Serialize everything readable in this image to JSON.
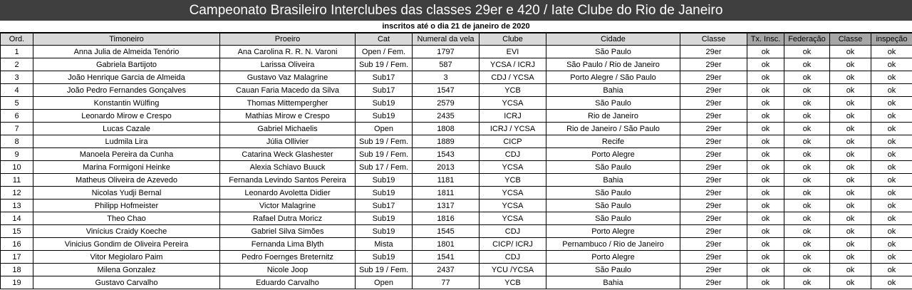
{
  "title": "Campeonato Brasileiro Interclubes das classes 29er e 420 / Iate Clube do Rio de Janeiro",
  "subtitle": "inscritos até o dia 21 de janeiro de 2020",
  "colors": {
    "title_bg": "#3f3f3f",
    "header_bg": "#d9d9d9",
    "header_dark_bg": "#a6a6a6"
  },
  "headers": [
    "Ord.",
    "Timoneiro",
    "Proeiro",
    "Cat",
    "Numeral da vela",
    "Clube",
    "Cidade",
    "Classe",
    "Tx. Insc.",
    "Federação",
    "Classe",
    "inspeção"
  ],
  "rows": [
    [
      "1",
      "Anna Julia de Almeida Tenório",
      "Ana Carolina R. R. N. Varoni",
      "Open / Fem.",
      "1797",
      "EVI",
      "São Paulo",
      "29er",
      "ok",
      "ok",
      "ok",
      "ok"
    ],
    [
      "2",
      "Gabriela Bartijoto",
      "Larissa Oliveira",
      "Sub 19 / Fem.",
      "587",
      "YCSA / ICRJ",
      "São Paulo / Rio de Janeiro",
      "29er",
      "ok",
      "ok",
      "ok",
      "ok"
    ],
    [
      "3",
      "João Henrique Garcia de Almeida",
      "Gustavo Vaz Malagrine",
      "Sub17",
      "3",
      "CDJ / YCSA",
      "Porto Alegre / São Paulo",
      "29er",
      "ok",
      "ok",
      "ok",
      "ok"
    ],
    [
      "4",
      "João Pedro Fernandes Gonçalves",
      "Cauan Faria Macedo da Silva",
      "Sub17",
      "1547",
      "YCB",
      "Bahia",
      "29er",
      "ok",
      "ok",
      "ok",
      "ok"
    ],
    [
      "5",
      "Konstantin Wülfing",
      "Thomas Mittempergher",
      "Sub19",
      "2579",
      "YCSA",
      "São Paulo",
      "29er",
      "ok",
      "ok",
      "ok",
      "ok"
    ],
    [
      "6",
      "Leonardo Mirow e Crespo",
      "Mathias Mirow e Crespo",
      "Sub19",
      "2435",
      "ICRJ",
      "Rio de Janeiro",
      "29er",
      "ok",
      "ok",
      "ok",
      "ok"
    ],
    [
      "7",
      "Lucas Cazale",
      "Gabriel Michaelis",
      "Open",
      "1808",
      "ICRJ / YCSA",
      "Rio de Janeiro / São Paulo",
      "29er",
      "ok",
      "ok",
      "ok",
      "ok"
    ],
    [
      "8",
      "Ludmila Lira",
      "Júlia Ollivier",
      "Sub 19 / Fem.",
      "1889",
      "CICP",
      "Recife",
      "29er",
      "ok",
      "ok",
      "ok",
      "ok"
    ],
    [
      "9",
      "Manoela Pereira da Cunha",
      "Catarina Weck Glashester",
      "Sub 19 / Fem.",
      "1543",
      "CDJ",
      "Porto Alegre",
      "29er",
      "ok",
      "ok",
      "ok",
      "ok"
    ],
    [
      "10",
      "Marina Formigoni Heinke",
      "Alexia Schiavo Buuck",
      "Sub 17 / Fem.",
      "2013",
      "YCSA",
      "São Paulo",
      "29er",
      "ok",
      "ok",
      "ok",
      "ok"
    ],
    [
      "11",
      "Matheus Oliveira de Azevedo",
      "Fernanda Levindo Santos Pereira",
      "Sub19",
      "1181",
      "YCB",
      "Bahia",
      "29er",
      "ok",
      "ok",
      "ok",
      "ok"
    ],
    [
      "12",
      "Nicolas Yudji Bernal",
      "Leonardo Avoletta Didier",
      "Sub19",
      "1811",
      "YCSA",
      "São Paulo",
      "29er",
      "ok",
      "ok",
      "ok",
      "ok"
    ],
    [
      "13",
      "Philipp Hofmeister",
      "Victor Malagrine",
      "Sub17",
      "1317",
      "YCSA",
      "São Paulo",
      "29er",
      "ok",
      "ok",
      "ok",
      "ok"
    ],
    [
      "14",
      "Theo Chao",
      "Rafael Dutra Moricz",
      "Sub19",
      "1816",
      "YCSA",
      "São Paulo",
      "29er",
      "ok",
      "ok",
      "ok",
      "ok"
    ],
    [
      "15",
      "Vinícius Craidy Koeche",
      "Gabriel Silva Simões",
      "Sub19",
      "1545",
      "CDJ",
      "Porto Alegre",
      "29er",
      "ok",
      "ok",
      "ok",
      "ok"
    ],
    [
      "16",
      "Vinicius Gondim de Oliveira Pereira",
      "Fernanda Lima Blyth",
      "Mista",
      "1801",
      "CICP/ ICRJ",
      "Pernambuco / Rio de Janeiro",
      "29er",
      "ok",
      "ok",
      "ok",
      "ok"
    ],
    [
      "17",
      "Vitor Megiolaro Paim",
      "Pedro Foernges Breternitz",
      "Sub19",
      "1541",
      "CDJ",
      "Porto Alegre",
      "29er",
      "ok",
      "ok",
      "ok",
      "ok"
    ],
    [
      "18",
      "Milena Gonzalez",
      "Nicole Joop",
      "Sub 19 / Fem.",
      "2437",
      "YCU /YCSA",
      "São Paulo",
      "29er",
      "ok",
      "ok",
      "ok",
      "ok"
    ],
    [
      "19",
      "Gustavo Carvalho",
      "Eduardo Carvalho",
      "Open",
      "77",
      "YCB",
      "Bahia",
      "29er",
      "ok",
      "ok",
      "ok",
      "ok"
    ]
  ]
}
